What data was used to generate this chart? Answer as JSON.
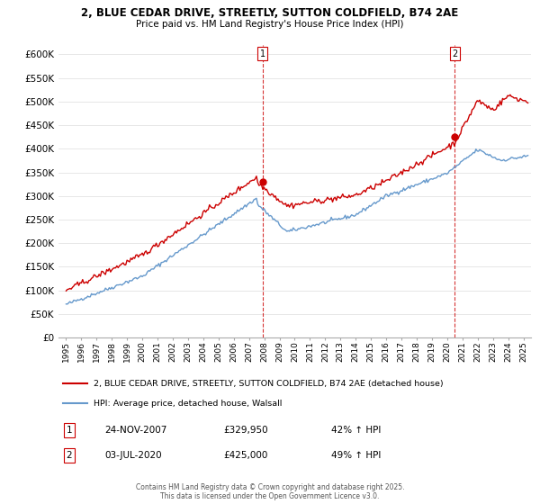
{
  "title": "2, BLUE CEDAR DRIVE, STREETLY, SUTTON COLDFIELD, B74 2AE",
  "subtitle": "Price paid vs. HM Land Registry's House Price Index (HPI)",
  "red_label": "2, BLUE CEDAR DRIVE, STREETLY, SUTTON COLDFIELD, B74 2AE (detached house)",
  "blue_label": "HPI: Average price, detached house, Walsall",
  "annotation1_label": "1",
  "annotation1_date": "24-NOV-2007",
  "annotation1_price": "£329,950",
  "annotation1_hpi": "42% ↑ HPI",
  "annotation2_label": "2",
  "annotation2_date": "03-JUL-2020",
  "annotation2_price": "£425,000",
  "annotation2_hpi": "49% ↑ HPI",
  "footer": "Contains HM Land Registry data © Crown copyright and database right 2025.\nThis data is licensed under the Open Government Licence v3.0.",
  "sale1_x": 2007.9,
  "sale1_y": 329950,
  "sale2_x": 2020.5,
  "sale2_y": 425000,
  "ylim_min": 0,
  "ylim_max": 620000,
  "xlim_min": 1994.5,
  "xlim_max": 2025.5,
  "yticks": [
    0,
    50000,
    100000,
    150000,
    200000,
    250000,
    300000,
    350000,
    400000,
    450000,
    500000,
    550000,
    600000
  ],
  "ytick_labels": [
    "£0",
    "£50K",
    "£100K",
    "£150K",
    "£200K",
    "£250K",
    "£300K",
    "£350K",
    "£400K",
    "£450K",
    "£500K",
    "£550K",
    "£600K"
  ],
  "background_color": "#ffffff",
  "red_color": "#cc0000",
  "blue_color": "#6699cc",
  "grid_color": "#dddddd",
  "vline_color": "#cc0000"
}
